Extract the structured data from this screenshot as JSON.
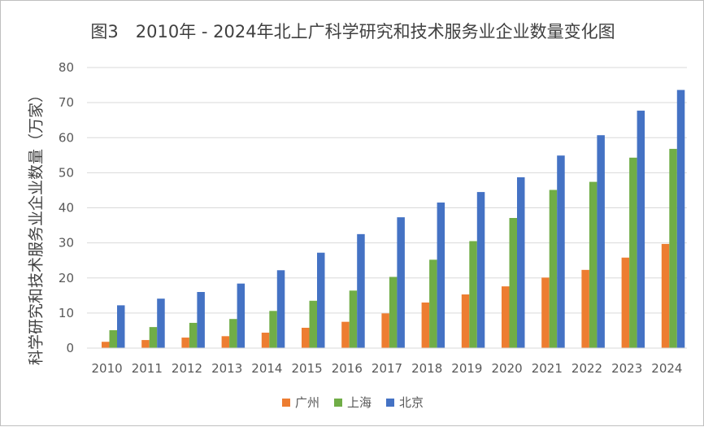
{
  "chart_data": {
    "type": "bar",
    "title": "图3　2010年 - 2024年北上广科学研究和技术服务业企业数量变化图",
    "ylabel": "科学研究和技术服务业企业数量（万家）",
    "xlabel": "",
    "ylim": [
      0,
      80
    ],
    "yticks": [
      0,
      10,
      20,
      30,
      40,
      50,
      60,
      70,
      80
    ],
    "grid": true,
    "legend_position": "bottom",
    "categories": [
      "2010",
      "2011",
      "2012",
      "2013",
      "2014",
      "2015",
      "2016",
      "2017",
      "2018",
      "2019",
      "2020",
      "2021",
      "2022",
      "2023",
      "2024"
    ],
    "series": [
      {
        "name": "广州",
        "color": "#ed7d31",
        "values": [
          1.8,
          2.3,
          3.0,
          3.4,
          4.4,
          5.8,
          7.5,
          9.9,
          13.0,
          15.3,
          17.6,
          20.1,
          22.3,
          25.8,
          29.7
        ]
      },
      {
        "name": "上海",
        "color": "#70ad47",
        "values": [
          5.1,
          6.0,
          7.2,
          8.3,
          10.6,
          13.5,
          16.4,
          20.3,
          25.2,
          30.5,
          37.1,
          45.1,
          47.4,
          54.3,
          56.8
        ]
      },
      {
        "name": "北京",
        "color": "#4472c4",
        "values": [
          12.2,
          14.1,
          16.0,
          18.4,
          22.2,
          27.2,
          32.5,
          37.3,
          41.5,
          44.5,
          48.7,
          54.9,
          60.7,
          67.7,
          73.6
        ]
      }
    ]
  }
}
